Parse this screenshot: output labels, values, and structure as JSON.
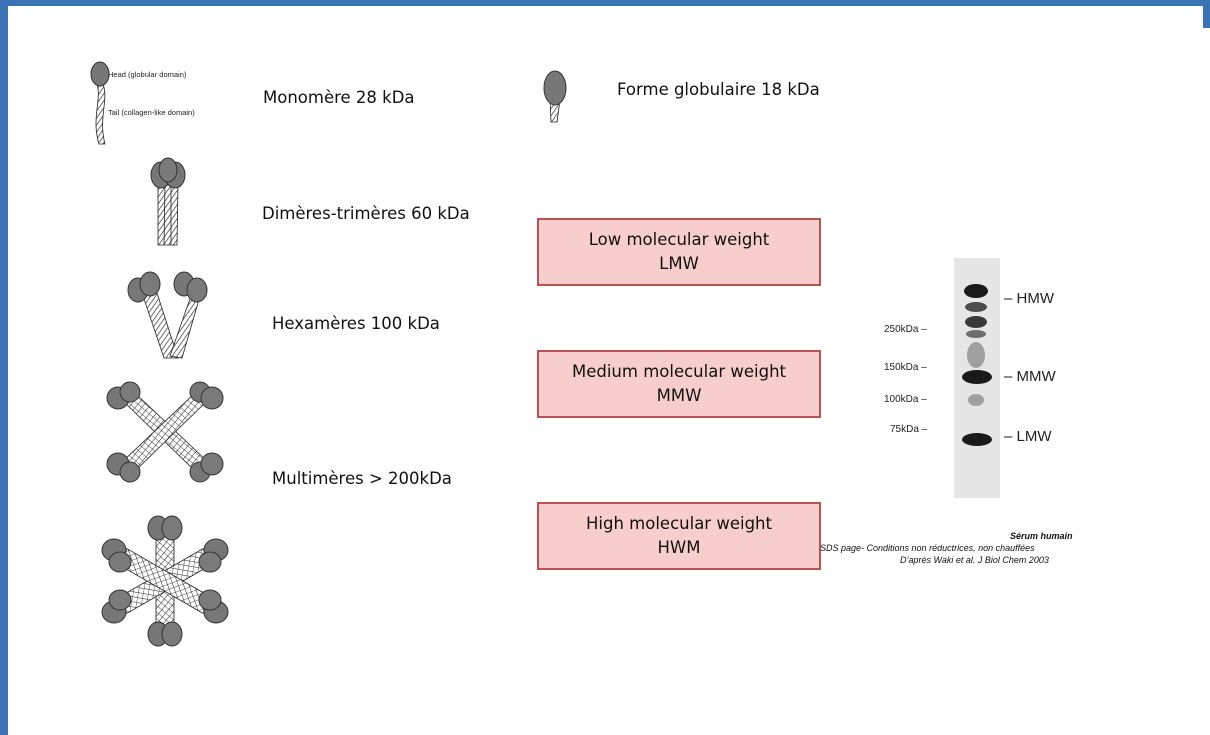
{
  "colors": {
    "border": "#3a73b4",
    "box_fill": "#f8cecc",
    "box_border": "#b85450",
    "molecule": "#777777"
  },
  "monomer": {
    "head_label": "Head (globular domain)",
    "tail_label": "Tail (collagen-like domain)",
    "label": "Monomère  28 kDa"
  },
  "globular": {
    "label": "Forme globulaire 18 kDa"
  },
  "dimer": {
    "label": "Dimères-trimères  60 kDa"
  },
  "hexamer": {
    "label": "Hexamères 100 kDa"
  },
  "multimer": {
    "label": "Multimères > 200kDa"
  },
  "boxes": [
    {
      "line1": "Low molecular  weight",
      "line2": "LMW"
    },
    {
      "line1": "Medium molecular weight",
      "line2": "MMW"
    },
    {
      "line1": "High molecular weight",
      "line2": "HWM"
    }
  ],
  "gel": {
    "markers": [
      "250kDa",
      "150kDa",
      "100kDa",
      "75kDa"
    ],
    "tags": [
      "HMW",
      "MMW",
      "LMW"
    ]
  },
  "caption": {
    "title": "Sérum humain",
    "line1": "SDS page- Conditions  non réductrices, non chauffées",
    "line2": "D’après Waki et al. J Biol Chem 2003"
  }
}
